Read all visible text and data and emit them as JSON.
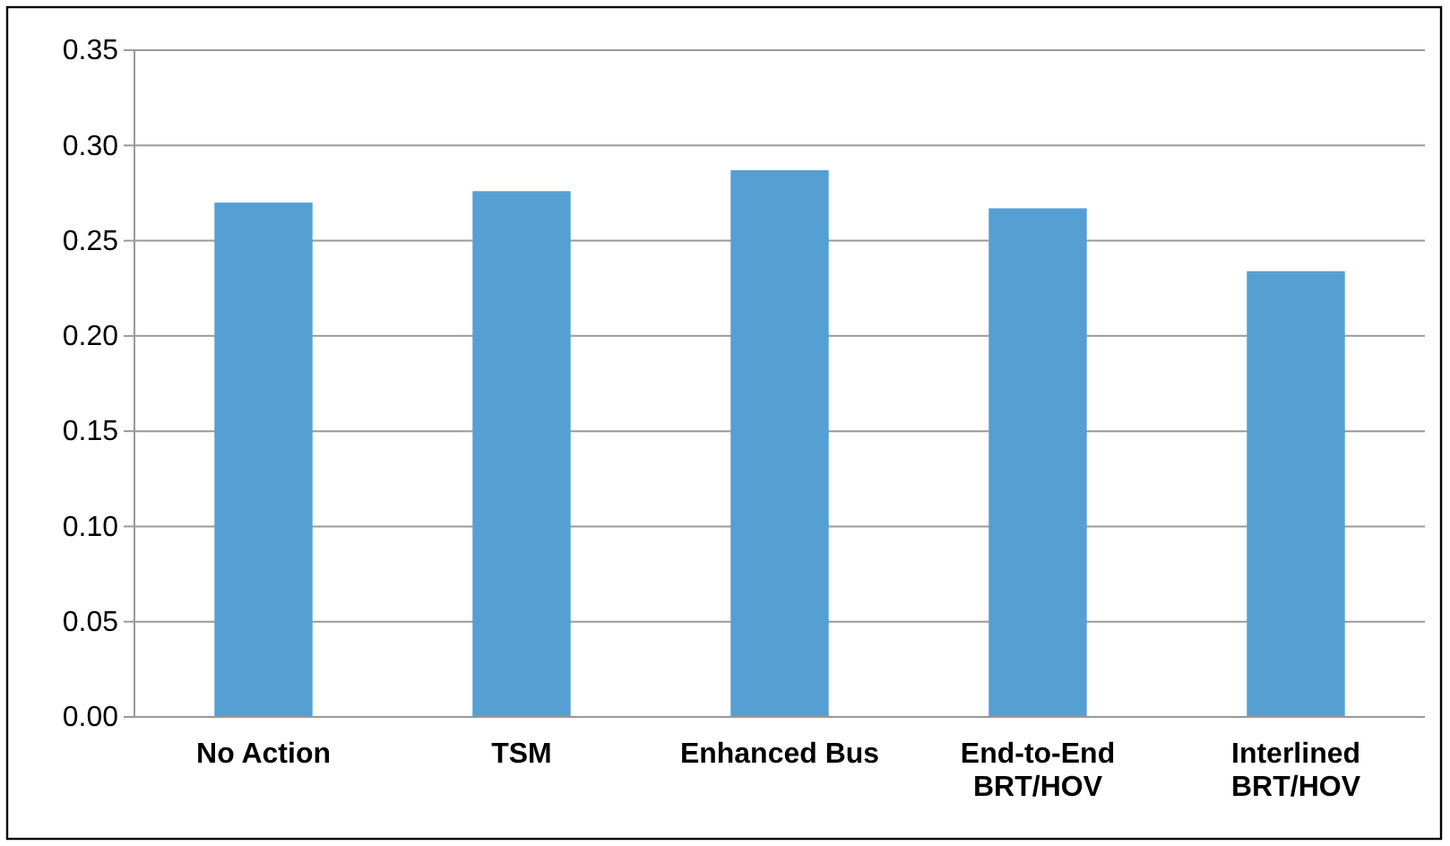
{
  "chart_data": {
    "type": "bar",
    "categories": [
      "No Action",
      "TSM",
      "Enhanced Bus",
      "End-to-End BRT/HOV",
      "Interlined BRT/HOV"
    ],
    "values": [
      0.27,
      0.276,
      0.287,
      0.267,
      0.234
    ],
    "color": "#569fd3",
    "ylim": [
      0,
      0.35
    ],
    "yticks": [
      {
        "value": 0,
        "label": "0.00"
      },
      {
        "value": 0.05,
        "label": "0.05"
      },
      {
        "value": 0.1,
        "label": "0.10"
      },
      {
        "value": 0.15,
        "label": "0.15"
      },
      {
        "value": 0.2,
        "label": "0.20"
      },
      {
        "value": 0.25,
        "label": "0.25"
      },
      {
        "value": 0.3,
        "label": "0.30"
      },
      {
        "value": 0.35,
        "label": "0.35"
      }
    ],
    "grid": "y"
  }
}
